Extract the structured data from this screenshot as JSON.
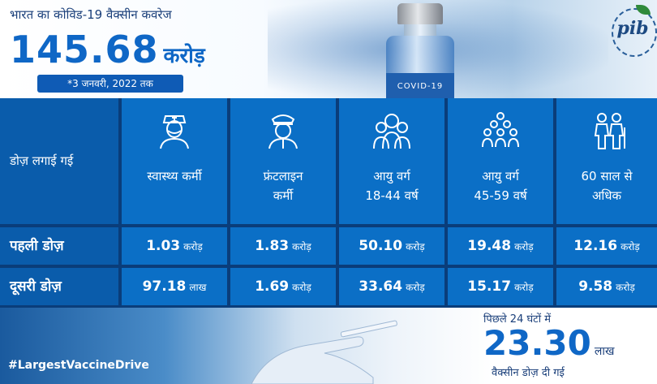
{
  "header": {
    "title_small": "भारत का कोविड-19 वैक्सीन कवरेज",
    "coverage_number": "145.68",
    "coverage_unit": "करोड़",
    "date_note": "*3 जनवरी, 2022 तक",
    "vial_label": "COVID-19",
    "logo_text": "pib"
  },
  "table": {
    "row_header_label": "डोज़ लगाई गई",
    "columns": [
      {
        "line1": "स्वास्थ्य कर्मी",
        "line2": "",
        "icon": "health-worker-icon"
      },
      {
        "line1": "फ्रंटलाइन",
        "line2": "कर्मी",
        "icon": "frontline-worker-icon"
      },
      {
        "line1": "आयु वर्ग",
        "line2": "18-44 वर्ष",
        "icon": "age-group-18-44-icon"
      },
      {
        "line1": "आयु वर्ग",
        "line2": "45-59 वर्ष",
        "icon": "age-group-45-59-icon"
      },
      {
        "line1": "60 साल से",
        "line2": "अधिक",
        "icon": "senior-citizens-icon"
      }
    ],
    "rows": [
      {
        "label": "पहली डोज़",
        "values": [
          {
            "n": "1.03",
            "u": "करोड़"
          },
          {
            "n": "1.83",
            "u": "करोड़"
          },
          {
            "n": "50.10",
            "u": "करोड़"
          },
          {
            "n": "19.48",
            "u": "करोड़"
          },
          {
            "n": "12.16",
            "u": "करोड़"
          }
        ]
      },
      {
        "label": "दूसरी डोज़",
        "values": [
          {
            "n": "97.18",
            "u": "लाख"
          },
          {
            "n": "1.69",
            "u": "करोड़"
          },
          {
            "n": "33.64",
            "u": "करोड़"
          },
          {
            "n": "15.17",
            "u": "करोड़"
          },
          {
            "n": "9.58",
            "u": "करोड़"
          }
        ]
      }
    ]
  },
  "footer": {
    "hashtag": "#LargestVaccineDrive",
    "last24_label": "पिछले 24 घंटों में",
    "last24_number": "23.30",
    "last24_unit": "लाख",
    "doses_given": "वैक्सीन डोज़ दी गई"
  },
  "colors": {
    "accent": "#0f67c6",
    "cell": "#0b6fc6",
    "grid": "#0a3d7a"
  }
}
